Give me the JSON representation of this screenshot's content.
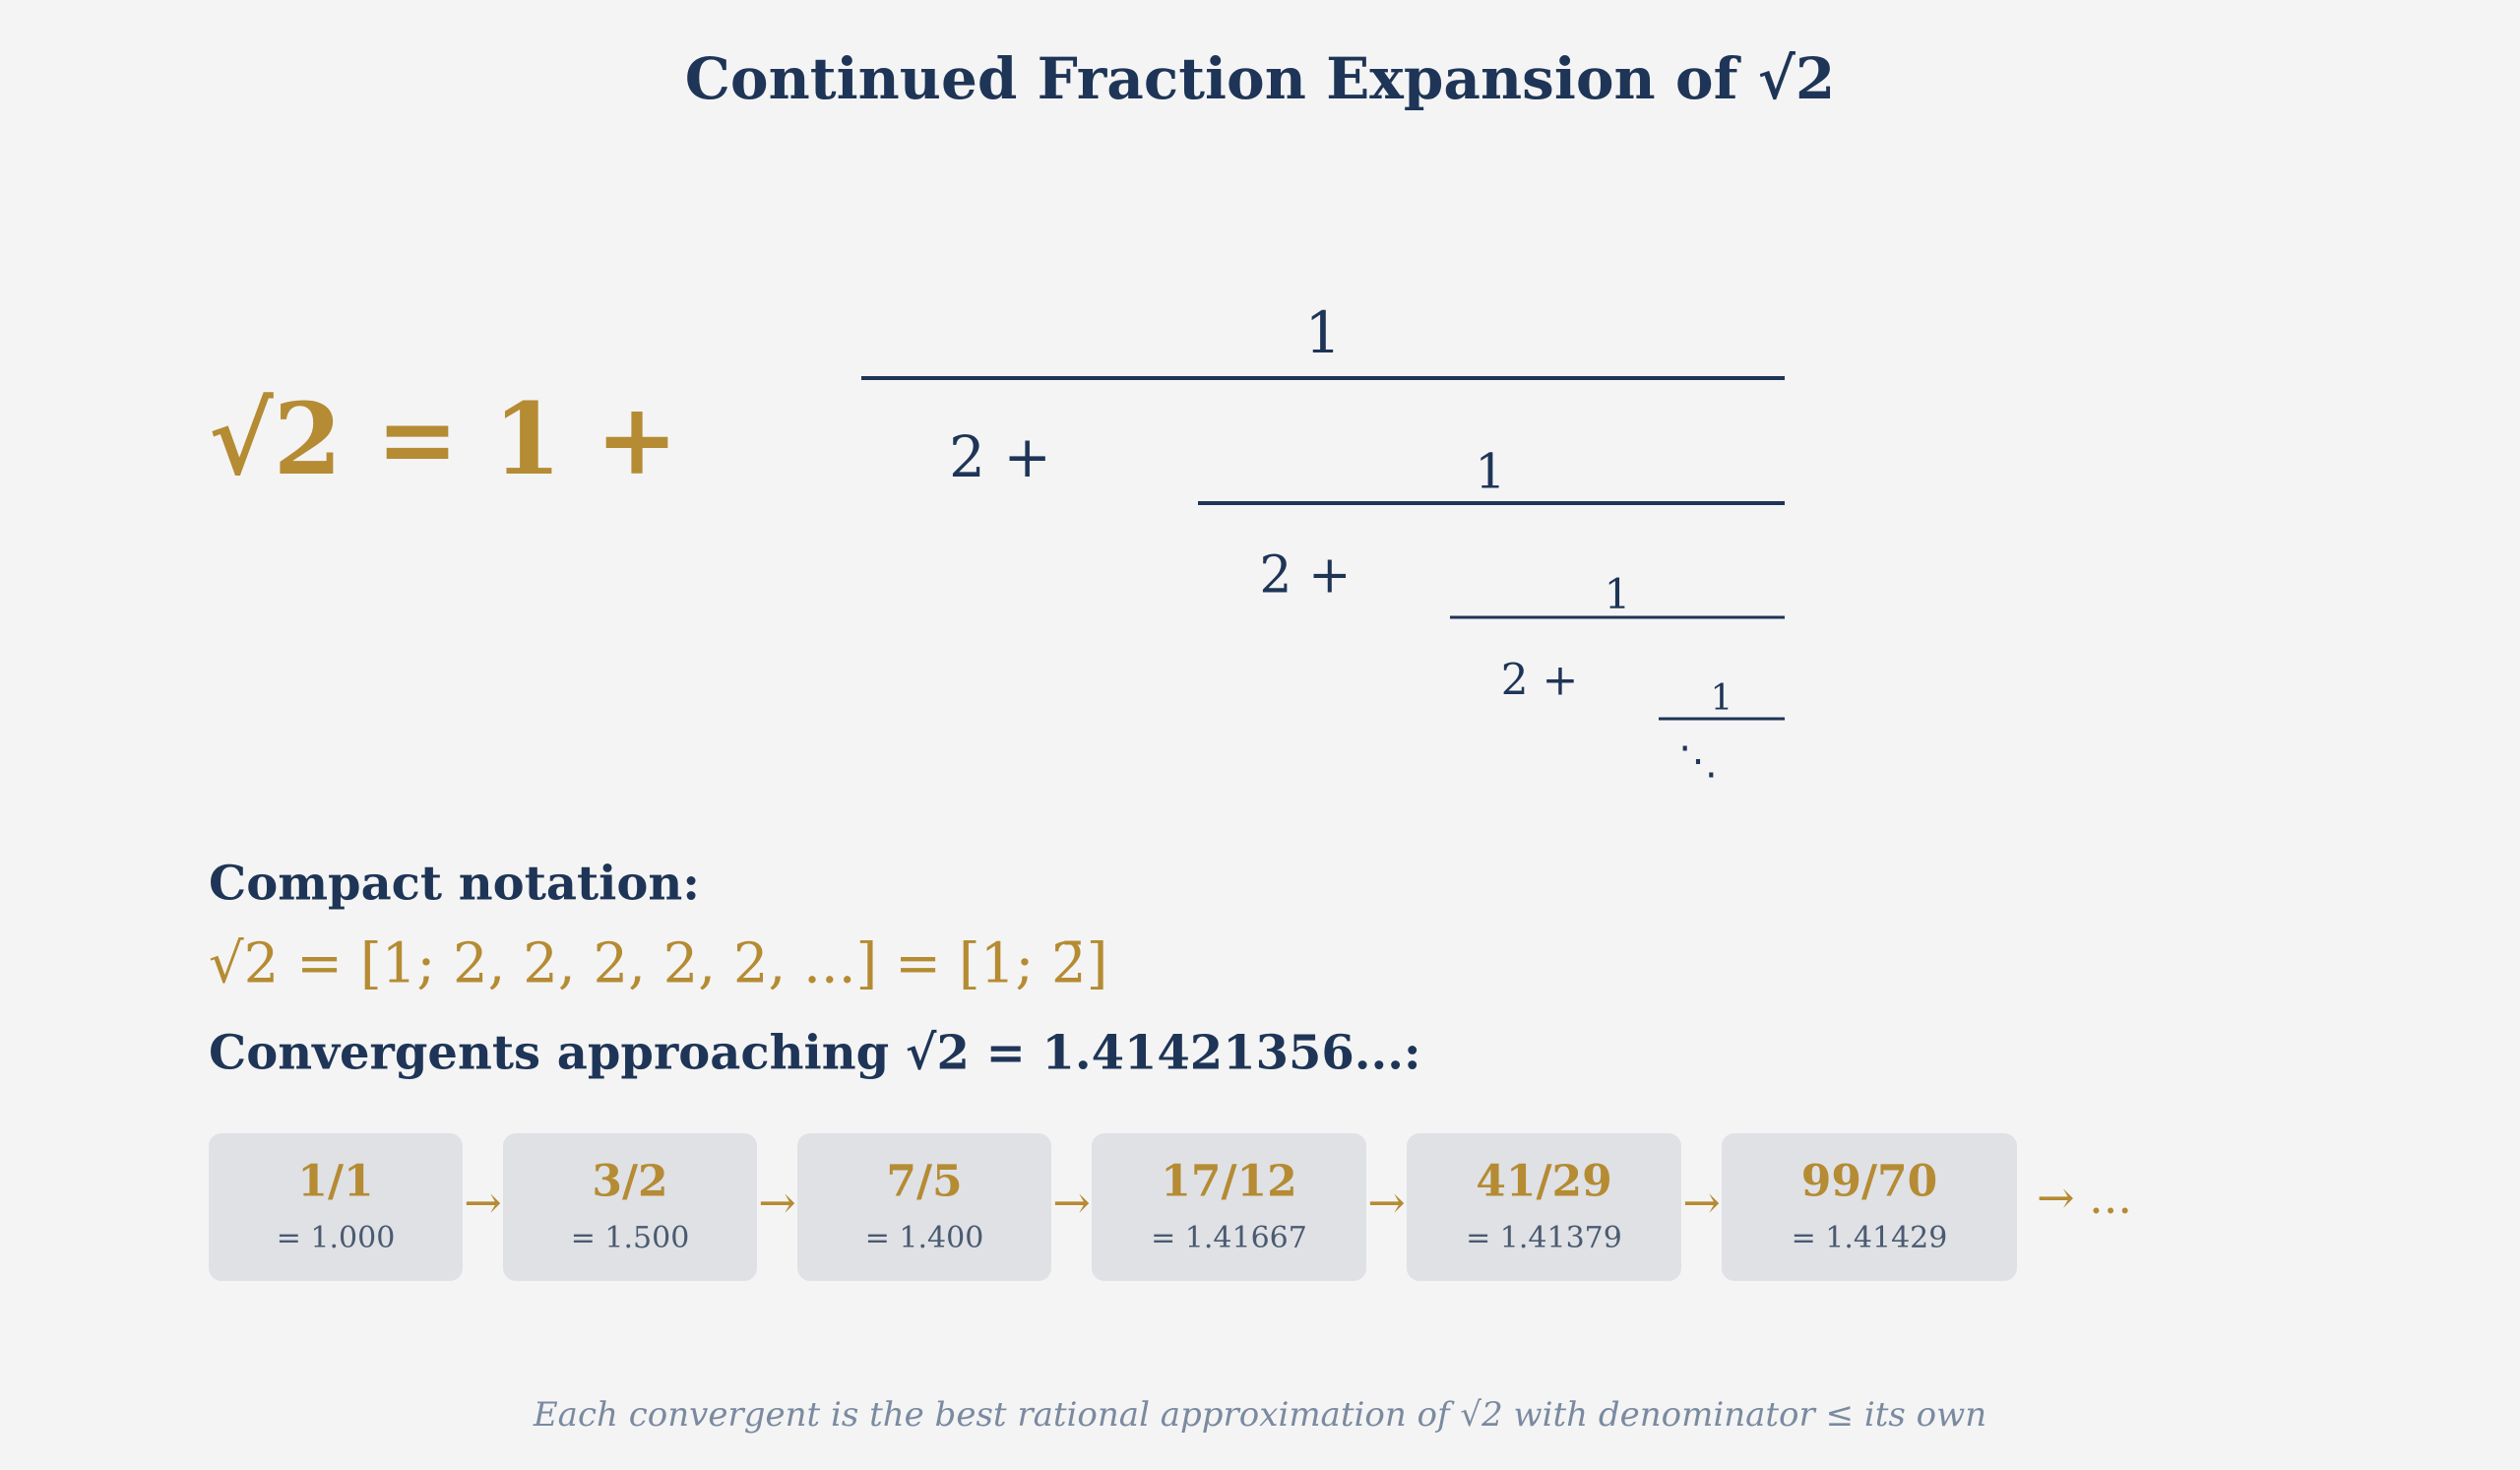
{
  "header": {
    "title": "Continued Fraction Expansion of √2"
  },
  "expansion": {
    "lhs": "√2 = 1 +",
    "levels": [
      {
        "numerator": "1",
        "term": "2 +"
      },
      {
        "numerator": "1",
        "term": "2 +"
      },
      {
        "numerator": "1",
        "term": "2 +"
      },
      {
        "numerator": "1"
      }
    ],
    "continuation": "⋱"
  },
  "compact": {
    "label": "Compact notation:",
    "formula": "√2 = [1; 2, 2, 2, 2, 2, ...] = [1; 2̄]"
  },
  "convergents": {
    "heading": "Convergents approaching √2 = 1.41421356...:",
    "items": [
      {
        "fraction": "1/1",
        "value": "= 1.000"
      },
      {
        "fraction": "3/2",
        "value": "= 1.500"
      },
      {
        "fraction": "7/5",
        "value": "= 1.400"
      },
      {
        "fraction": "17/12",
        "value": "= 1.41667"
      },
      {
        "fraction": "41/29",
        "value": "= 1.41379"
      },
      {
        "fraction": "99/70",
        "value": "= 1.41429"
      }
    ],
    "separator": "→",
    "trailing": "→ ..."
  },
  "footnote": "Each convergent is the best rational approximation of √2 with denominator ≤ its own"
}
